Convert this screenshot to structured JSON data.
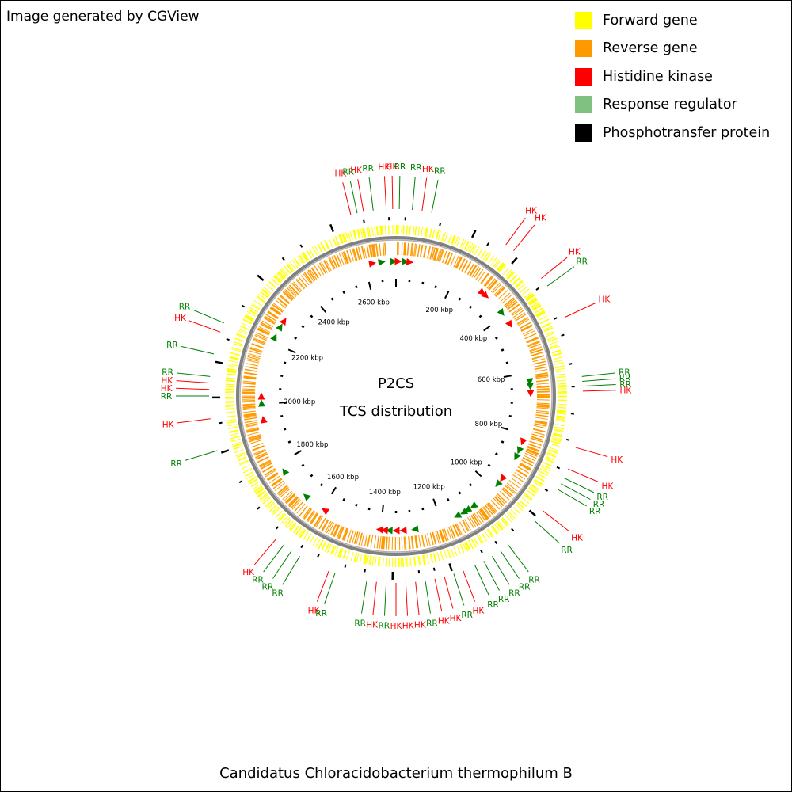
{
  "header": {
    "credit": "Image generated by CGView"
  },
  "legend": [
    {
      "label": "Forward gene",
      "color": "#ffff00"
    },
    {
      "label": "Reverse gene",
      "color": "#ff9900"
    },
    {
      "label": "Histidine kinase",
      "color": "#ff0000"
    },
    {
      "label": "Response regulator",
      "color": "#80c080"
    },
    {
      "label": "Phosphotransfer protein",
      "color": "#000000"
    }
  ],
  "map": {
    "title_line1": "P2CS",
    "title_line2": "TCS distribution",
    "organism": "Candidatus Chloracidobacterium thermophilum B",
    "genome_length_kbp": 2700,
    "tick_labels": [
      {
        "text": "200 kbp",
        "kbp": 200
      },
      {
        "text": "400 kbp",
        "kbp": 400
      },
      {
        "text": "600 kbp",
        "kbp": 600
      },
      {
        "text": "800 kbp",
        "kbp": 800
      },
      {
        "text": "1000 kbp",
        "kbp": 1000
      },
      {
        "text": "1200 kbp",
        "kbp": 1200
      },
      {
        "text": "1400 kbp",
        "kbp": 1400
      },
      {
        "text": "1600 kbp",
        "kbp": 1600
      },
      {
        "text": "1800 kbp",
        "kbp": 1800
      },
      {
        "text": "2000 kbp",
        "kbp": 2000
      },
      {
        "text": "2200 kbp",
        "kbp": 2200
      },
      {
        "text": "2400 kbp",
        "kbp": 2400
      },
      {
        "text": "2600 kbp",
        "kbp": 2600
      }
    ],
    "colors": {
      "forward": "#ffff00",
      "reverse": "#ff9900",
      "backbone": "#808080",
      "hk": "#ff0000",
      "rr": "#008000",
      "hpt": "#000000"
    },
    "callouts": [
      {
        "text": "HK",
        "type": "HK",
        "pos_deg": -14
      },
      {
        "text": "RR",
        "type": "RR",
        "pos_deg": -12
      },
      {
        "text": "HK",
        "type": "HK",
        "pos_deg": -10
      },
      {
        "text": "RR",
        "type": "RR",
        "pos_deg": -7
      },
      {
        "text": "HK",
        "type": "HK",
        "pos_deg": -3
      },
      {
        "text": "HK",
        "type": "HK",
        "pos_deg": -1
      },
      {
        "text": "RR",
        "type": "RR",
        "pos_deg": 1
      },
      {
        "text": "RR",
        "type": "RR",
        "pos_deg": 5
      },
      {
        "text": "HK",
        "type": "HK",
        "pos_deg": 8
      },
      {
        "text": "RR",
        "type": "RR",
        "pos_deg": 11
      },
      {
        "text": "HK",
        "type": "HK",
        "pos_deg": 36
      },
      {
        "text": "HK",
        "type": "HK",
        "pos_deg": 39
      },
      {
        "text": "HK",
        "type": "HK",
        "pos_deg": 51
      },
      {
        "text": "RR",
        "type": "RR",
        "pos_deg": 54
      },
      {
        "text": "HK",
        "type": "HK",
        "pos_deg": 65
      },
      {
        "text": "RR",
        "type": "RR",
        "pos_deg": 84
      },
      {
        "text": "RR",
        "type": "RR",
        "pos_deg": 85.5
      },
      {
        "text": "RR",
        "type": "RR",
        "pos_deg": 87
      },
      {
        "text": "HK",
        "type": "HK",
        "pos_deg": 88.5
      },
      {
        "text": "HK",
        "type": "HK",
        "pos_deg": 106
      },
      {
        "text": "HK",
        "type": "HK",
        "pos_deg": 113
      },
      {
        "text": "RR",
        "type": "RR",
        "pos_deg": 116
      },
      {
        "text": "RR",
        "type": "RR",
        "pos_deg": 118
      },
      {
        "text": "RR",
        "type": "RR",
        "pos_deg": 120
      },
      {
        "text": "HK",
        "type": "HK",
        "pos_deg": 128
      },
      {
        "text": "RR",
        "type": "RR",
        "pos_deg": 132
      },
      {
        "text": "RR",
        "type": "RR",
        "pos_deg": 143
      },
      {
        "text": "RR",
        "type": "RR",
        "pos_deg": 146
      },
      {
        "text": "RR",
        "type": "RR",
        "pos_deg": 149
      },
      {
        "text": "RR",
        "type": "RR",
        "pos_deg": 152
      },
      {
        "text": "RR",
        "type": "RR",
        "pos_deg": 155
      },
      {
        "text": "HK",
        "type": "HK",
        "pos_deg": 159
      },
      {
        "text": "RR",
        "type": "RR",
        "pos_deg": 162
      },
      {
        "text": "HK",
        "type": "HK",
        "pos_deg": 165
      },
      {
        "text": "HK",
        "type": "HK",
        "pos_deg": 168
      },
      {
        "text": "RR",
        "type": "RR",
        "pos_deg": 171
      },
      {
        "text": "HK",
        "type": "HK",
        "pos_deg": 174
      },
      {
        "text": "HK",
        "type": "HK",
        "pos_deg": 177
      },
      {
        "text": "HK",
        "type": "HK",
        "pos_deg": 180
      },
      {
        "text": "RR",
        "type": "RR",
        "pos_deg": 183
      },
      {
        "text": "HK",
        "type": "HK",
        "pos_deg": 186
      },
      {
        "text": "RR",
        "type": "RR",
        "pos_deg": 189
      },
      {
        "text": "RR",
        "type": "RR",
        "pos_deg": 199
      },
      {
        "text": "HK",
        "type": "HK",
        "pos_deg": 201
      },
      {
        "text": "RR",
        "type": "RR",
        "pos_deg": 211
      },
      {
        "text": "RR",
        "type": "RR",
        "pos_deg": 214
      },
      {
        "text": "RR",
        "type": "RR",
        "pos_deg": 217
      },
      {
        "text": "HK",
        "type": "HK",
        "pos_deg": 220
      },
      {
        "text": "RR",
        "type": "RR",
        "pos_deg": 253
      },
      {
        "text": "HK",
        "type": "HK",
        "pos_deg": 263
      },
      {
        "text": "RR",
        "type": "RR",
        "pos_deg": 270
      },
      {
        "text": "HK",
        "type": "HK",
        "pos_deg": 272
      },
      {
        "text": "HK",
        "type": "HK",
        "pos_deg": 274
      },
      {
        "text": "RR",
        "type": "RR",
        "pos_deg": 276
      },
      {
        "text": "RR",
        "type": "RR",
        "pos_deg": 283
      },
      {
        "text": "HK",
        "type": "HK",
        "pos_deg": 290
      },
      {
        "text": "RR",
        "type": "RR",
        "pos_deg": 293
      }
    ],
    "inner_markers": [
      {
        "type": "HK",
        "pos_deg": -10
      },
      {
        "type": "RR",
        "pos_deg": -6
      },
      {
        "type": "RR",
        "pos_deg": -1
      },
      {
        "type": "HK",
        "pos_deg": 1
      },
      {
        "type": "RR",
        "pos_deg": 4
      },
      {
        "type": "HK",
        "pos_deg": 6
      },
      {
        "type": "HK",
        "pos_deg": 40
      },
      {
        "type": "HK",
        "pos_deg": 42
      },
      {
        "type": "RR",
        "pos_deg": 52
      },
      {
        "type": "HK",
        "pos_deg": 58
      },
      {
        "type": "RR",
        "pos_deg": 84
      },
      {
        "type": "RR",
        "pos_deg": 86
      },
      {
        "type": "HK",
        "pos_deg": 89
      },
      {
        "type": "HK",
        "pos_deg": 110
      },
      {
        "type": "RR",
        "pos_deg": 114
      },
      {
        "type": "RR",
        "pos_deg": 117
      },
      {
        "type": "HK",
        "pos_deg": 128
      },
      {
        "type": "RR",
        "pos_deg": 131
      },
      {
        "type": "RR",
        "pos_deg": 145
      },
      {
        "type": "RR",
        "pos_deg": 148
      },
      {
        "type": "RR",
        "pos_deg": 150
      },
      {
        "type": "RR",
        "pos_deg": 153
      },
      {
        "type": "RR",
        "pos_deg": 172
      },
      {
        "type": "HK",
        "pos_deg": 177
      },
      {
        "type": "HK",
        "pos_deg": 180
      },
      {
        "type": "RR",
        "pos_deg": 183
      },
      {
        "type": "HK",
        "pos_deg": 185
      },
      {
        "type": "HK",
        "pos_deg": 187
      },
      {
        "type": "HK",
        "pos_deg": 212
      },
      {
        "type": "RR",
        "pos_deg": 222
      },
      {
        "type": "RR",
        "pos_deg": 236
      },
      {
        "type": "HK",
        "pos_deg": 260
      },
      {
        "type": "RR",
        "pos_deg": 267
      },
      {
        "type": "HK",
        "pos_deg": 270
      },
      {
        "type": "RR",
        "pos_deg": 296
      },
      {
        "type": "RR",
        "pos_deg": 301
      },
      {
        "type": "HK",
        "pos_deg": 304
      }
    ]
  }
}
